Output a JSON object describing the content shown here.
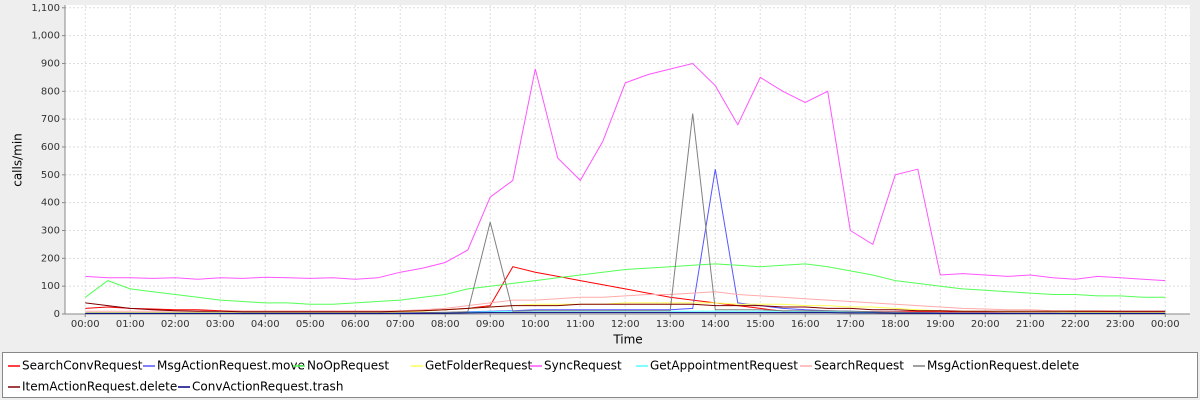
{
  "chart_data": {
    "type": "line",
    "x_label": "Time",
    "y_label": "calls/min",
    "x": [
      0,
      0.5,
      1,
      1.5,
      2,
      2.5,
      3,
      3.5,
      4,
      4.5,
      5,
      5.5,
      6,
      6.5,
      7,
      7.5,
      8,
      8.5,
      9,
      9.5,
      10,
      10.5,
      11,
      11.5,
      12,
      12.5,
      13,
      13.5,
      14,
      14.5,
      15,
      15.5,
      16,
      16.5,
      17,
      17.5,
      18,
      18.5,
      19,
      19.5,
      20,
      20.5,
      21,
      21.5,
      22,
      22.5,
      23,
      23.5,
      24
    ],
    "xlim": [
      -0.45,
      24.55
    ],
    "xticks": [
      {
        "value": 0,
        "label": "00:00"
      },
      {
        "value": 1,
        "label": "01:00"
      },
      {
        "value": 2,
        "label": "02:00"
      },
      {
        "value": 3,
        "label": "03:00"
      },
      {
        "value": 4,
        "label": "04:00"
      },
      {
        "value": 5,
        "label": "05:00"
      },
      {
        "value": 6,
        "label": "06:00"
      },
      {
        "value": 7,
        "label": "07:00"
      },
      {
        "value": 8,
        "label": "08:00"
      },
      {
        "value": 9,
        "label": "09:00"
      },
      {
        "value": 10,
        "label": "10:00"
      },
      {
        "value": 11,
        "label": "11:00"
      },
      {
        "value": 12,
        "label": "12:00"
      },
      {
        "value": 13,
        "label": "13:00"
      },
      {
        "value": 14,
        "label": "14:00"
      },
      {
        "value": 15,
        "label": "15:00"
      },
      {
        "value": 16,
        "label": "16:00"
      },
      {
        "value": 17,
        "label": "17:00"
      },
      {
        "value": 18,
        "label": "18:00"
      },
      {
        "value": 19,
        "label": "19:00"
      },
      {
        "value": 20,
        "label": "20:00"
      },
      {
        "value": 21,
        "label": "21:00"
      },
      {
        "value": 22,
        "label": "22:00"
      },
      {
        "value": 23,
        "label": "23:00"
      },
      {
        "value": 24,
        "label": "00:00"
      }
    ],
    "ylim": [
      0,
      1110
    ],
    "yticks": [
      0,
      100,
      200,
      300,
      400,
      500,
      600,
      700,
      800,
      900,
      {
        "value": 1000,
        "label": "1,000"
      },
      {
        "value": 1100,
        "label": "1,100"
      }
    ],
    "grid": true,
    "series": [
      {
        "name": "SearchConvRequest",
        "color": "#ff0000",
        "values": [
          20,
          25,
          20,
          18,
          15,
          15,
          12,
          10,
          10,
          10,
          10,
          10,
          10,
          10,
          10,
          12,
          15,
          20,
          30,
          170,
          150,
          135,
          120,
          105,
          90,
          75,
          60,
          50,
          40,
          30,
          20,
          10,
          10,
          10,
          8,
          8,
          8,
          8,
          8,
          8,
          8,
          8,
          8,
          8,
          8,
          8,
          8,
          8,
          8
        ]
      },
      {
        "name": "MsgActionRequest.move",
        "color": "#5555ff",
        "values": [
          2,
          2,
          2,
          2,
          2,
          2,
          2,
          2,
          2,
          2,
          2,
          2,
          2,
          2,
          3,
          3,
          5,
          8,
          10,
          12,
          15,
          15,
          15,
          15,
          15,
          15,
          15,
          20,
          520,
          40,
          30,
          20,
          15,
          12,
          10,
          8,
          6,
          5,
          4,
          3,
          3,
          3,
          2,
          2,
          2,
          2,
          2,
          2,
          2
        ]
      },
      {
        "name": "NoOpRequest",
        "color": "#55ff55",
        "values": [
          60,
          120,
          90,
          80,
          70,
          60,
          50,
          45,
          40,
          40,
          35,
          35,
          40,
          45,
          50,
          60,
          70,
          90,
          100,
          110,
          120,
          130,
          140,
          150,
          160,
          165,
          170,
          175,
          180,
          175,
          170,
          175,
          180,
          170,
          155,
          140,
          120,
          110,
          100,
          90,
          85,
          80,
          75,
          70,
          70,
          65,
          65,
          60,
          60
        ]
      },
      {
        "name": "GetFolderRequest",
        "color": "#ffff55",
        "values": [
          5,
          5,
          5,
          5,
          5,
          5,
          5,
          5,
          5,
          5,
          5,
          5,
          5,
          5,
          8,
          10,
          15,
          20,
          25,
          30,
          35,
          35,
          35,
          35,
          40,
          40,
          40,
          40,
          40,
          35,
          35,
          35,
          30,
          30,
          25,
          25,
          20,
          15,
          12,
          10,
          10,
          8,
          8,
          8,
          6,
          6,
          5,
          5,
          5
        ]
      },
      {
        "name": "SyncRequest",
        "color": "#ff55ff",
        "values": [
          135,
          130,
          130,
          128,
          130,
          125,
          130,
          128,
          132,
          130,
          128,
          130,
          125,
          130,
          150,
          165,
          185,
          230,
          420,
          480,
          880,
          560,
          480,
          620,
          830,
          860,
          880,
          900,
          820,
          680,
          850,
          800,
          760,
          800,
          300,
          250,
          500,
          520,
          140,
          145,
          140,
          135,
          140,
          130,
          125,
          135,
          130,
          125,
          120
        ]
      },
      {
        "name": "GetAppointmentRequest",
        "color": "#55ffff",
        "values": [
          2,
          2,
          2,
          2,
          2,
          2,
          2,
          2,
          2,
          2,
          2,
          2,
          2,
          2,
          3,
          4,
          5,
          6,
          8,
          10,
          10,
          10,
          10,
          10,
          10,
          10,
          10,
          10,
          10,
          10,
          10,
          10,
          8,
          8,
          8,
          6,
          5,
          4,
          3,
          3,
          3,
          2,
          2,
          2,
          2,
          2,
          2,
          2,
          2
        ]
      },
      {
        "name": "SearchRequest",
        "color": "#ffaaaa",
        "values": [
          10,
          10,
          10,
          10,
          10,
          10,
          10,
          10,
          10,
          10,
          10,
          10,
          10,
          10,
          12,
          15,
          20,
          30,
          40,
          50,
          50,
          55,
          60,
          60,
          65,
          70,
          70,
          75,
          80,
          70,
          65,
          60,
          55,
          50,
          45,
          40,
          35,
          30,
          25,
          20,
          18,
          15,
          15,
          12,
          12,
          12,
          10,
          10,
          10
        ]
      },
      {
        "name": "MsgActionRequest.delete",
        "color": "#808080",
        "values": [
          3,
          3,
          3,
          3,
          3,
          3,
          3,
          3,
          3,
          3,
          3,
          3,
          3,
          3,
          4,
          5,
          6,
          8,
          330,
          10,
          12,
          12,
          12,
          12,
          12,
          12,
          12,
          720,
          15,
          15,
          15,
          12,
          12,
          12,
          10,
          8,
          6,
          5,
          4,
          4,
          4,
          3,
          3,
          3,
          3,
          3,
          3,
          3,
          3
        ]
      },
      {
        "name": "ItemActionRequest.delete",
        "color": "#800000",
        "values": [
          40,
          30,
          20,
          15,
          12,
          10,
          10,
          8,
          8,
          8,
          8,
          8,
          8,
          8,
          10,
          12,
          15,
          20,
          25,
          30,
          30,
          30,
          35,
          35,
          35,
          35,
          35,
          35,
          30,
          30,
          30,
          25,
          25,
          20,
          20,
          15,
          15,
          12,
          12,
          10,
          10,
          10,
          10,
          10,
          10,
          10,
          10,
          10,
          10
        ]
      },
      {
        "name": "ConvActionRequest.trash",
        "color": "#000080",
        "values": [
          2,
          2,
          2,
          2,
          2,
          2,
          2,
          2,
          2,
          2,
          2,
          2,
          2,
          2,
          2,
          3,
          3,
          4,
          5,
          5,
          5,
          5,
          5,
          5,
          5,
          5,
          5,
          5,
          5,
          5,
          5,
          5,
          5,
          5,
          4,
          4,
          3,
          3,
          2,
          2,
          2,
          2,
          2,
          2,
          2,
          2,
          2,
          2,
          2
        ]
      }
    ]
  }
}
